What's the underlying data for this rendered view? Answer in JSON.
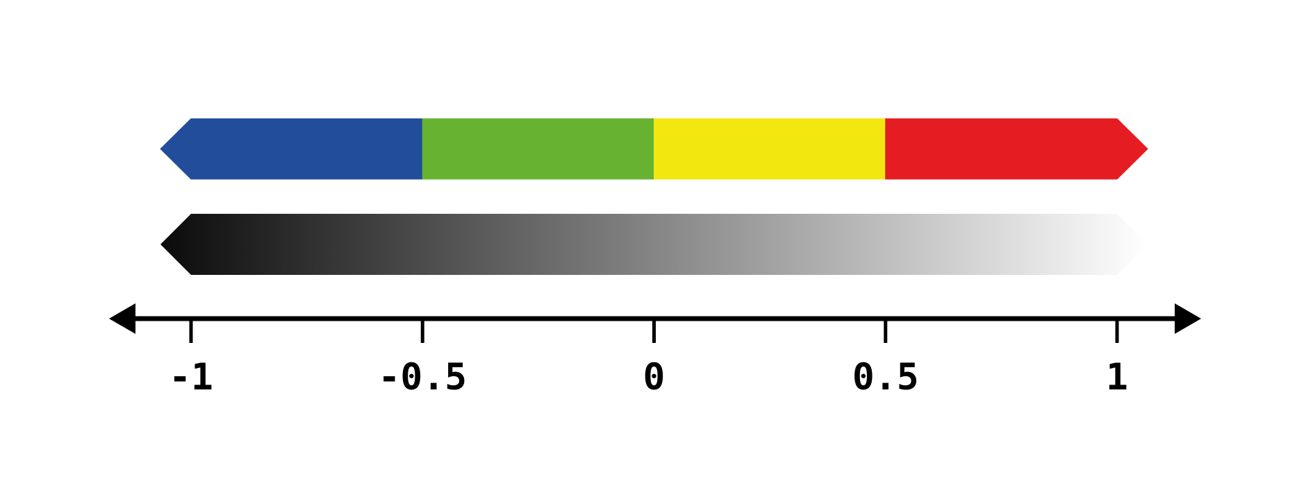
{
  "diagram": {
    "color_bar": {
      "segments": [
        {
          "from": -1,
          "to": -0.5,
          "color": "#214d9b"
        },
        {
          "from": -0.5,
          "to": 0,
          "color": "#67b231"
        },
        {
          "from": 0,
          "to": 0.5,
          "color": "#f2e70f"
        },
        {
          "from": 0.5,
          "to": 1,
          "color": "#e51c21"
        }
      ]
    },
    "gradient_bar": {
      "start_color": "#0b0b0b",
      "end_color": "#ffffff"
    },
    "axis": {
      "min": -1,
      "max": 1,
      "color": "#000000",
      "ticks": [
        {
          "value": -1,
          "label": "-1"
        },
        {
          "value": -0.5,
          "label": "-0.5"
        },
        {
          "value": 0,
          "label": "0"
        },
        {
          "value": 0.5,
          "label": "0.5"
        },
        {
          "value": 1,
          "label": "1"
        }
      ]
    }
  }
}
